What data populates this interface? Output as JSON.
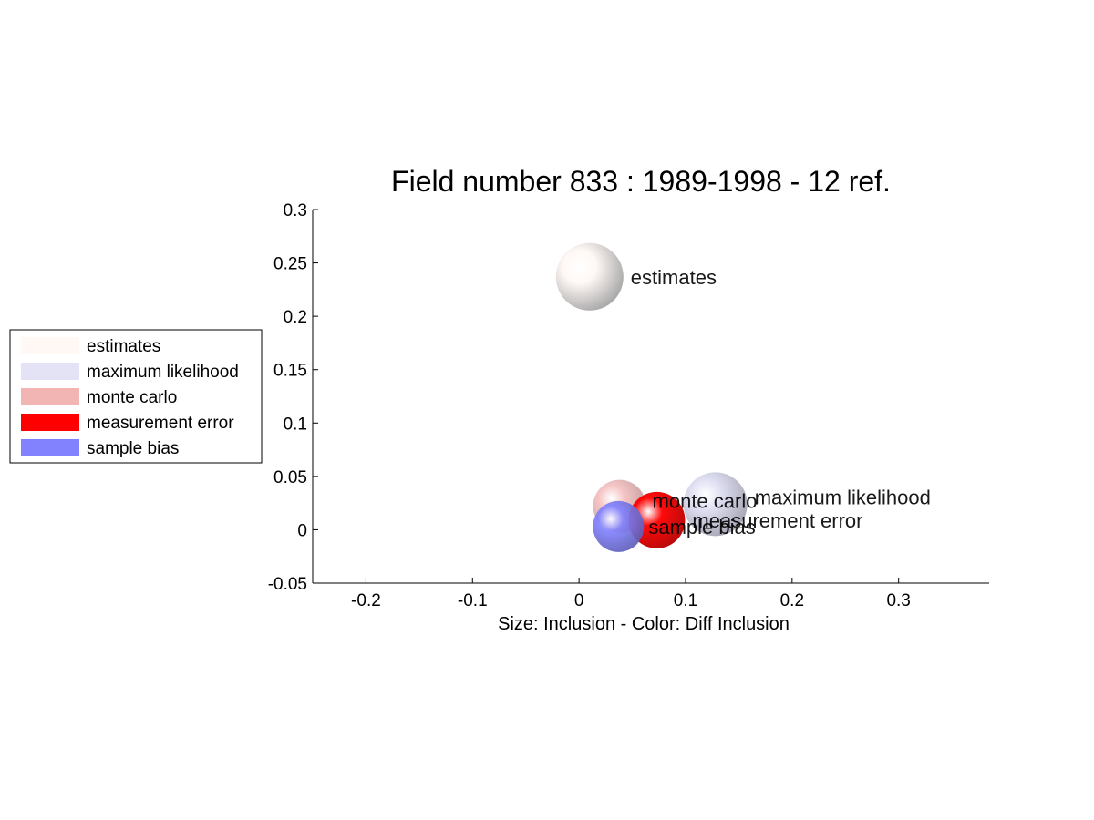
{
  "chart_data": {
    "type": "scatter",
    "title": "Field number 833 : 1989-1998  - 12 ref.",
    "xlabel": "Size: Inclusion - Color: Diff Inclusion",
    "ylabel": "",
    "xlim": [
      -0.25,
      0.385
    ],
    "ylim": [
      -0.05,
      0.3
    ],
    "xticks": [
      -0.2,
      -0.1,
      0,
      0.1,
      0.2,
      0.3
    ],
    "xtick_labels": [
      "-0.2",
      "-0.1",
      "0",
      "0.1",
      "0.2",
      "0.3"
    ],
    "yticks": [
      -0.05,
      0,
      0.05,
      0.1,
      0.15,
      0.2,
      0.25,
      0.3
    ],
    "ytick_labels": [
      "-0.05",
      "0",
      "0.05",
      "0.1",
      "0.15",
      "0.2",
      "0.25",
      "0.3"
    ],
    "grid": false,
    "legend_position": "outside-left",
    "series": [
      {
        "name": "estimates",
        "x": 0.01,
        "y": 0.237,
        "color": "#fff8f5",
        "label": "estimates"
      },
      {
        "name": "maximum likelihood",
        "x": 0.128,
        "y": 0.024,
        "color": "#dcdcf2",
        "label": "maximum likelihood"
      },
      {
        "name": "monte carlo",
        "x": 0.038,
        "y": 0.022,
        "color": "#f3b4b4",
        "label": "monte carlo"
      },
      {
        "name": "measurement error",
        "x": 0.073,
        "y": 0.009,
        "color": "#ff0000",
        "label": "measurement error"
      },
      {
        "name": "sample bias",
        "x": 0.037,
        "y": 0.003,
        "color": "#8282ff",
        "label": "sample bias"
      }
    ]
  }
}
